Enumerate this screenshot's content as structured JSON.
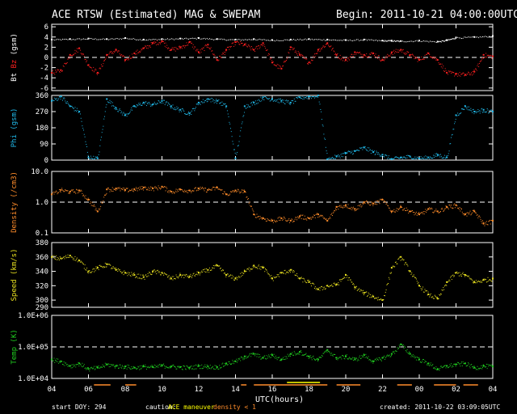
{
  "header": {
    "title": "ACE RTSW (Estimated) MAG & SWEPAM",
    "begin": "Begin: 2011-10-21 04:00:00UTC"
  },
  "footer": {
    "start_doy": "start DOY: 294",
    "caution_label": "caution:",
    "caution_maneuver": "ACE maneuver",
    "caution_density": "density < 1",
    "created": "created: 2011-10-22 03:09:05UTC",
    "xlabel": "UTC(hours)"
  },
  "colors": {
    "bt": "#ffffff",
    "bz": "#ff2020",
    "phi": "#20b8e8",
    "density": "#ff8c2a",
    "speed": "#e8e020",
    "temp": "#20d020",
    "frame": "#ffffff",
    "maneuver": "#ffff00",
    "lowdensity": "#ff8c2a"
  },
  "chart_data": {
    "type": "scatter",
    "x": {
      "ticks": [
        "04",
        "06",
        "08",
        "10",
        "12",
        "14",
        "16",
        "18",
        "20",
        "22",
        "00",
        "02",
        "04"
      ],
      "start_hour": 4,
      "span_hours": 24
    },
    "panels": [
      {
        "id": "mag",
        "ylabel_parts": [
          "Bt",
          "Bz",
          "(gsm)"
        ],
        "ylim": [
          -6.5,
          6.5
        ],
        "yticks": [
          "6",
          "4",
          "2",
          "0",
          "-2",
          "-4",
          "-6"
        ],
        "ytick_values": [
          6,
          4,
          2,
          0,
          -2,
          -4,
          -6
        ],
        "dashed": [
          0
        ],
        "series": [
          {
            "name": "Bt",
            "color": "bt",
            "x": [
              4,
              5,
              6,
              7,
              8,
              9,
              10,
              11,
              12,
              13,
              14,
              15,
              16,
              17,
              18,
              19,
              20,
              21,
              22,
              22.5,
              23,
              24,
              25,
              25.5,
              26,
              27,
              28
            ],
            "y": [
              3.5,
              3.6,
              3.7,
              3.6,
              3.8,
              3.5,
              3.6,
              3.7,
              3.8,
              3.6,
              3.5,
              3.6,
              3.4,
              3.5,
              3.6,
              3.5,
              3.4,
              3.5,
              3.3,
              3.3,
              3.2,
              3.3,
              3.1,
              3.4,
              3.9,
              4.0,
              4.2
            ]
          },
          {
            "name": "Bz",
            "color": "bz",
            "x": [
              4,
              4.5,
              5,
              5.5,
              6,
              6.5,
              7,
              7.5,
              8,
              8.5,
              9,
              9.5,
              10,
              10.5,
              11,
              11.5,
              12,
              12.5,
              13,
              13.5,
              14,
              14.5,
              15,
              15.5,
              16,
              16.5,
              17,
              17.5,
              18,
              18.5,
              19,
              19.5,
              20,
              20.5,
              21,
              21.5,
              22,
              22.5,
              23,
              23.5,
              24,
              24.5,
              25,
              25.5,
              26,
              26.5,
              27,
              27.5,
              28
            ],
            "y": [
              -3,
              -2.5,
              0.5,
              1.8,
              -1.5,
              -3,
              0.5,
              1.5,
              -0.5,
              0.8,
              1.8,
              2.8,
              3.2,
              1.5,
              2,
              3,
              1,
              2.5,
              -0.5,
              1.5,
              3,
              2.5,
              1.5,
              2.8,
              -1,
              -2.2,
              2,
              0.5,
              -1,
              1.5,
              2.8,
              0.5,
              -0.5,
              1,
              0.5,
              0.8,
              -0.5,
              1,
              1.5,
              0.5,
              -0.5,
              0.8,
              -0.5,
              -3,
              -3.2,
              -3.4,
              -2.8,
              0.5,
              0.2
            ]
          }
        ]
      },
      {
        "id": "phi",
        "ylabel": "Phi (gsm)",
        "ylim": [
          0,
          360
        ],
        "yticks": [
          "360",
          "270",
          "180",
          "90",
          "0"
        ],
        "ytick_values": [
          360,
          270,
          180,
          90,
          0
        ],
        "dashed": [],
        "series": [
          {
            "name": "Phi",
            "color": "phi",
            "x": [
              4,
              4.5,
              5,
              5.5,
              6,
              6.5,
              7,
              7.5,
              8,
              8.5,
              9,
              9.5,
              10,
              10.5,
              11,
              11.5,
              12,
              12.5,
              13,
              13.5,
              14,
              14.5,
              15,
              15.5,
              16,
              16.5,
              17,
              17.5,
              18,
              18.5,
              19,
              19.5,
              20,
              20.5,
              21,
              21.5,
              22,
              22.5,
              23,
              23.5,
              24,
              24.5,
              25,
              25.5,
              26,
              26.5,
              27,
              27.5,
              28
            ],
            "y": [
              330,
              355,
              300,
              270,
              15,
              10,
              340,
              290,
              250,
              300,
              320,
              310,
              330,
              300,
              280,
              260,
              320,
              340,
              330,
              300,
              10,
              300,
              320,
              350,
              340,
              330,
              320,
              350,
              355,
              360,
              5,
              20,
              40,
              50,
              70,
              45,
              30,
              5,
              15,
              20,
              10,
              15,
              30,
              15,
              250,
              300,
              270,
              280,
              270
            ]
          }
        ]
      },
      {
        "id": "density",
        "ylabel": "Density (/cm3)",
        "log": true,
        "ylim": [
          0.1,
          10
        ],
        "yticks": [
          "10.0",
          "1.0",
          "0.1"
        ],
        "ytick_values": [
          10,
          1,
          0.1
        ],
        "dashed": [
          1
        ],
        "series": [
          {
            "name": "Density",
            "color": "density",
            "x": [
              4,
              4.5,
              5,
              5.5,
              6,
              6.5,
              7,
              7.5,
              8,
              8.5,
              9,
              9.5,
              10,
              10.5,
              11,
              11.5,
              12,
              12.5,
              13,
              13.5,
              14,
              14.5,
              15,
              15.5,
              16,
              16.5,
              17,
              17.5,
              18,
              18.5,
              19,
              19.5,
              20,
              20.5,
              21,
              21.5,
              22,
              22.5,
              23,
              23.5,
              24,
              24.5,
              25,
              25.5,
              26,
              26.5,
              27,
              27.5,
              28
            ],
            "y": [
              1.8,
              2.5,
              2.2,
              2.4,
              1.2,
              0.5,
              2.6,
              2.8,
              2.5,
              2.6,
              3,
              2.8,
              3.2,
              2.2,
              2.6,
              2.4,
              2.8,
              2.5,
              3,
              1.8,
              2.4,
              2.2,
              0.4,
              0.3,
              0.25,
              0.3,
              0.25,
              0.35,
              0.3,
              0.4,
              0.25,
              0.7,
              0.8,
              0.6,
              1,
              0.9,
              1.2,
              0.5,
              0.7,
              0.5,
              0.4,
              0.6,
              0.5,
              0.7,
              0.8,
              0.4,
              0.5,
              0.2,
              0.25
            ]
          }
        ]
      },
      {
        "id": "speed",
        "ylabel": "Speed (km/s)",
        "ylim": [
          290,
          380
        ],
        "yticks": [
          "380",
          "360",
          "340",
          "320",
          "300",
          "290"
        ],
        "ytick_values": [
          380,
          360,
          340,
          320,
          300,
          290
        ],
        "dashed": [],
        "series": [
          {
            "name": "Speed",
            "color": "speed",
            "x": [
              4,
              4.5,
              5,
              5.5,
              6,
              6.5,
              7,
              7.5,
              8,
              8.5,
              9,
              9.5,
              10,
              10.5,
              11,
              11.5,
              12,
              12.5,
              13,
              13.5,
              14,
              14.5,
              15,
              15.5,
              16,
              16.5,
              17,
              17.5,
              18,
              18.5,
              19,
              19.5,
              20,
              20.5,
              21,
              21.5,
              22,
              22.5,
              23,
              23.5,
              24,
              24.5,
              25,
              25.5,
              26,
              26.5,
              27,
              27.5,
              28
            ],
            "y": [
              360,
              358,
              362,
              355,
              340,
              345,
              350,
              342,
              338,
              335,
              332,
              340,
              338,
              330,
              335,
              333,
              338,
              342,
              348,
              335,
              330,
              340,
              348,
              345,
              330,
              338,
              342,
              330,
              325,
              315,
              320,
              322,
              335,
              318,
              310,
              305,
              300,
              345,
              360,
              340,
              320,
              308,
              302,
              325,
              338,
              335,
              325,
              328,
              330
            ]
          }
        ]
      },
      {
        "id": "temp",
        "ylabel": "Temp (K)",
        "log": true,
        "ylim": [
          10000,
          1000000
        ],
        "yticks": [
          "1.0E+06",
          "1.0E+05",
          "1.0E+04"
        ],
        "ytick_values": [
          1000000,
          100000,
          10000
        ],
        "dashed": [
          100000
        ],
        "series": [
          {
            "name": "Temp",
            "color": "temp",
            "x": [
              4,
              4.5,
              5,
              5.5,
              6,
              6.5,
              7,
              7.5,
              8,
              8.5,
              9,
              9.5,
              10,
              10.5,
              11,
              11.5,
              12,
              12.5,
              13,
              13.5,
              14,
              14.5,
              15,
              15.5,
              16,
              16.5,
              17,
              17.5,
              18,
              18.5,
              19,
              19.5,
              20,
              20.5,
              21,
              21.5,
              22,
              22.5,
              23,
              23.5,
              24,
              24.5,
              25,
              25.5,
              26,
              26.5,
              27,
              27.5,
              28
            ],
            "y": [
              40000,
              35000,
              25000,
              30000,
              20000,
              22000,
              28000,
              25000,
              24000,
              22000,
              24000,
              23000,
              26000,
              24000,
              23000,
              22000,
              25000,
              24000,
              23000,
              30000,
              35000,
              50000,
              60000,
              45000,
              55000,
              40000,
              60000,
              70000,
              50000,
              40000,
              80000,
              45000,
              50000,
              40000,
              55000,
              35000,
              45000,
              60000,
              120000,
              60000,
              40000,
              30000,
              20000,
              25000,
              28000,
              30000,
              22000,
              25000,
              24000
            ]
          }
        ]
      }
    ]
  }
}
